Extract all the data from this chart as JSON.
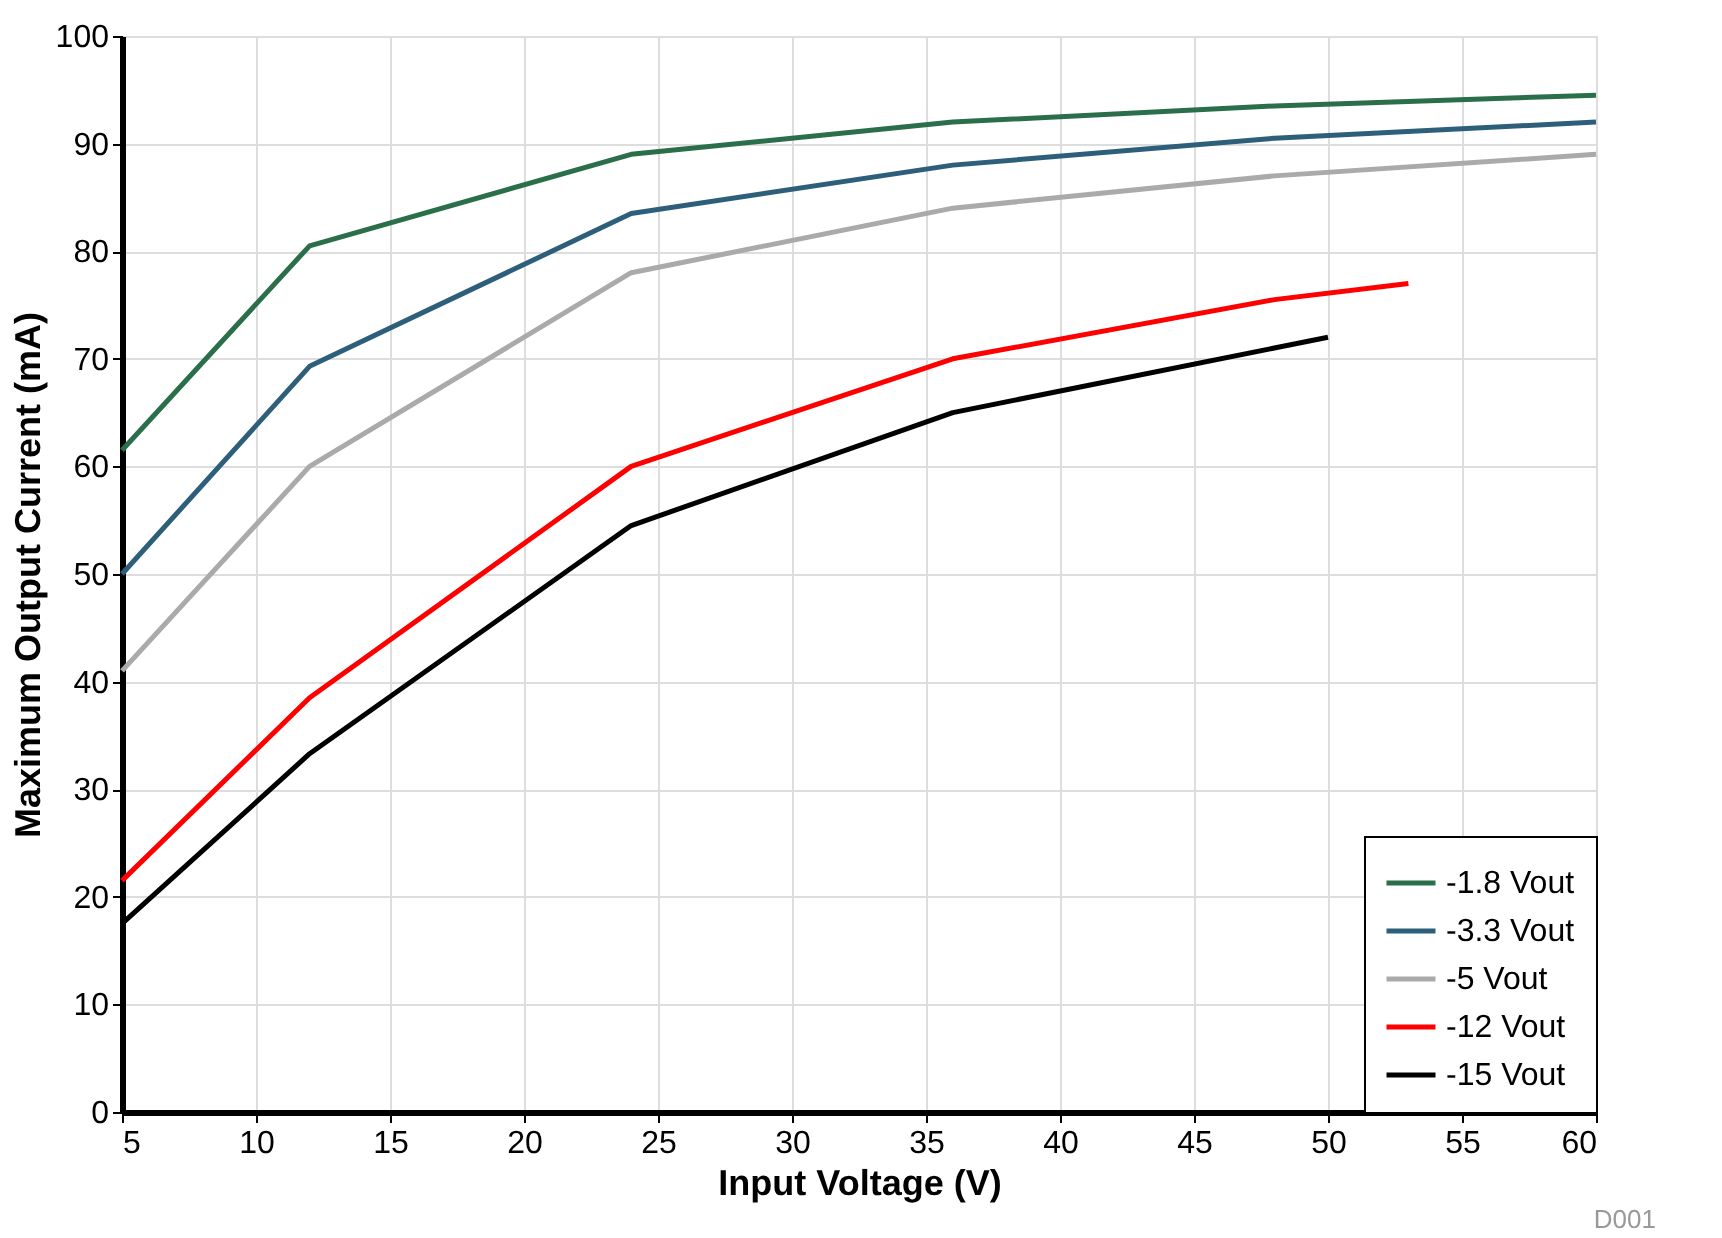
{
  "chart_data": {
    "type": "line",
    "xlabel": "Input Voltage (V)",
    "ylabel": "Maximum Output Current (mA)",
    "xlim": [
      5,
      60
    ],
    "xticks": [
      5,
      10,
      15,
      20,
      25,
      30,
      35,
      40,
      45,
      50,
      55,
      60
    ],
    "ylim": [
      0,
      100
    ],
    "yticks": [
      0,
      10,
      20,
      30,
      40,
      50,
      60,
      70,
      80,
      90,
      100
    ],
    "grid": true,
    "legend": "bottom right",
    "marker": "none",
    "line_style": "solid",
    "annotations": [
      "D001"
    ],
    "series": [
      {
        "name": "-1.8 Vout",
        "color": "#2a6e4a",
        "x": [
          5,
          12,
          24,
          36,
          48,
          60
        ],
        "values": [
          61.5,
          80.5,
          89,
          92,
          93.5,
          94.5
        ]
      },
      {
        "name": "-3.3 Vout",
        "color": "#2e5f7a",
        "x": [
          5,
          12,
          24,
          36,
          48,
          60
        ],
        "values": [
          50,
          69.3,
          83.5,
          88,
          90.5,
          92
        ]
      },
      {
        "name": "-5 Vout",
        "color": "#aaaaaa",
        "x": [
          5,
          12,
          24,
          36,
          48,
          60
        ],
        "values": [
          41,
          60,
          78,
          84,
          87,
          89
        ]
      },
      {
        "name": "-12 Vout",
        "color": "#ff0000",
        "x": [
          5,
          12,
          24,
          36,
          48,
          53
        ],
        "values": [
          21.5,
          38.5,
          60,
          70,
          75.5,
          77
        ]
      },
      {
        "name": "-15 Vout",
        "color": "#000000",
        "x": [
          5,
          12,
          24,
          36,
          48,
          50
        ],
        "values": [
          17.5,
          33.3,
          54.5,
          65,
          71,
          72
        ]
      }
    ]
  }
}
